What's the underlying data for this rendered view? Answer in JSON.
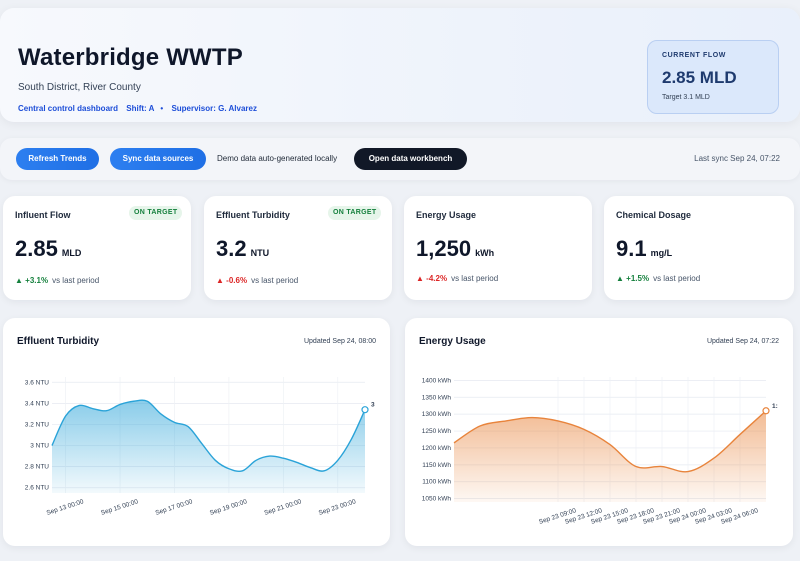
{
  "header": {
    "title": "Waterbridge WWTP",
    "location": "South District, River County",
    "dashboard": "Central control dashboard",
    "shift": "Shift: A",
    "separator": "•",
    "supervisor": "Supervisor: G. Alvarez",
    "current_flow": {
      "label": "CURRENT FLOW",
      "value": "2.85 MLD",
      "target": "Target 3.1 MLD"
    }
  },
  "toolbar": {
    "refresh_label": "Refresh Trends",
    "sync_label": "Sync data sources",
    "demo_note": "Demo data auto-generated locally",
    "workbench_label": "Open data workbench",
    "last_sync": "Last sync Sep 24, 07:22"
  },
  "kpis": [
    {
      "name": "Influent Flow",
      "badge": "ON TARGET",
      "value": "2.85",
      "unit": "MLD",
      "delta": "+3.1%",
      "direction": "up",
      "vs": "vs last period"
    },
    {
      "name": "Effluent Turbidity",
      "badge": "ON TARGET",
      "value": "3.2",
      "unit": "NTU",
      "delta": "-0.6%",
      "direction": "down",
      "vs": "vs last period"
    },
    {
      "name": "Energy Usage",
      "badge": "",
      "value": "1,250",
      "unit": "kWh",
      "delta": "-4.2%",
      "direction": "down",
      "vs": "vs last period"
    },
    {
      "name": "Chemical Dosage",
      "badge": "",
      "value": "9.1",
      "unit": "mg/L",
      "delta": "+1.5%",
      "direction": "up",
      "vs": "vs last period"
    }
  ],
  "charts": {
    "turbidity": {
      "title": "Effluent Turbidity",
      "updated": "Updated Sep 24, 08:00"
    },
    "energy": {
      "title": "Energy Usage",
      "updated": "Updated Sep 24, 07:22"
    }
  },
  "colors": {
    "accent_blue": "#1f6fe5",
    "turbidity_line": "#2aa3d8",
    "energy_line": "#e8843c",
    "positive": "#15803d",
    "negative": "#dc2626"
  },
  "chart_data": [
    {
      "type": "area",
      "title": "Effluent Turbidity",
      "x": [
        "Sep 12 12:00",
        "Sep 13 00:00",
        "Sep 13 12:00",
        "Sep 14 00:00",
        "Sep 14 12:00",
        "Sep 15 00:00",
        "Sep 15 12:00",
        "Sep 16 00:00",
        "Sep 16 12:00",
        "Sep 17 00:00",
        "Sep 17 12:00",
        "Sep 18 00:00",
        "Sep 18 12:00",
        "Sep 19 00:00",
        "Sep 19 12:00",
        "Sep 20 00:00",
        "Sep 20 12:00",
        "Sep 21 00:00",
        "Sep 21 12:00",
        "Sep 22 00:00",
        "Sep 22 12:00",
        "Sep 23 00:00",
        "Sep 23 12:00",
        "Sep 24 00:00"
      ],
      "values": [
        3.0,
        3.28,
        3.38,
        3.35,
        3.33,
        3.39,
        3.42,
        3.42,
        3.3,
        3.22,
        3.18,
        3.02,
        2.86,
        2.78,
        2.76,
        2.86,
        2.9,
        2.88,
        2.84,
        2.79,
        2.76,
        2.86,
        3.06,
        3.34
      ],
      "x_ticks": [
        "Sep 13 00:00",
        "Sep 15 00:00",
        "Sep 17 00:00",
        "Sep 19 00:00",
        "Sep 21 00:00",
        "Sep 23 00:00"
      ],
      "y_ticks": [
        "2.6 NTU",
        "2.8 NTU",
        "3 NTU",
        "3.2 NTU",
        "3.4 NTU",
        "3.6 NTU"
      ],
      "ylim": [
        2.55,
        3.65
      ],
      "end_label": "3",
      "grid": true
    },
    {
      "type": "area",
      "title": "Energy Usage",
      "x": [
        "Sep 22 21:00",
        "Sep 23 00:00",
        "Sep 23 03:00",
        "Sep 23 06:00",
        "Sep 23 09:00",
        "Sep 23 12:00",
        "Sep 23 15:00",
        "Sep 23 18:00",
        "Sep 23 21:00",
        "Sep 24 00:00",
        "Sep 24 03:00",
        "Sep 24 06:00",
        "Sep 24 07:00"
      ],
      "values": [
        1215,
        1265,
        1280,
        1290,
        1280,
        1255,
        1210,
        1145,
        1145,
        1130,
        1170,
        1240,
        1310
      ],
      "x_ticks": [
        "Sep 23 09:00",
        "Sep 23 12:00",
        "Sep 23 15:00",
        "Sep 23 18:00",
        "Sep 23 21:00",
        "Sep 24 00:00",
        "Sep 24 03:00",
        "Sep 24 06:00"
      ],
      "y_ticks": [
        "1050 kWh",
        "1100 kWh",
        "1150 kWh",
        "1200 kWh",
        "1250 kWh",
        "1300 kWh",
        "1350 kWh",
        "1400 kWh"
      ],
      "ylim": [
        1040,
        1410
      ],
      "end_label": "1:",
      "grid": true
    }
  ]
}
